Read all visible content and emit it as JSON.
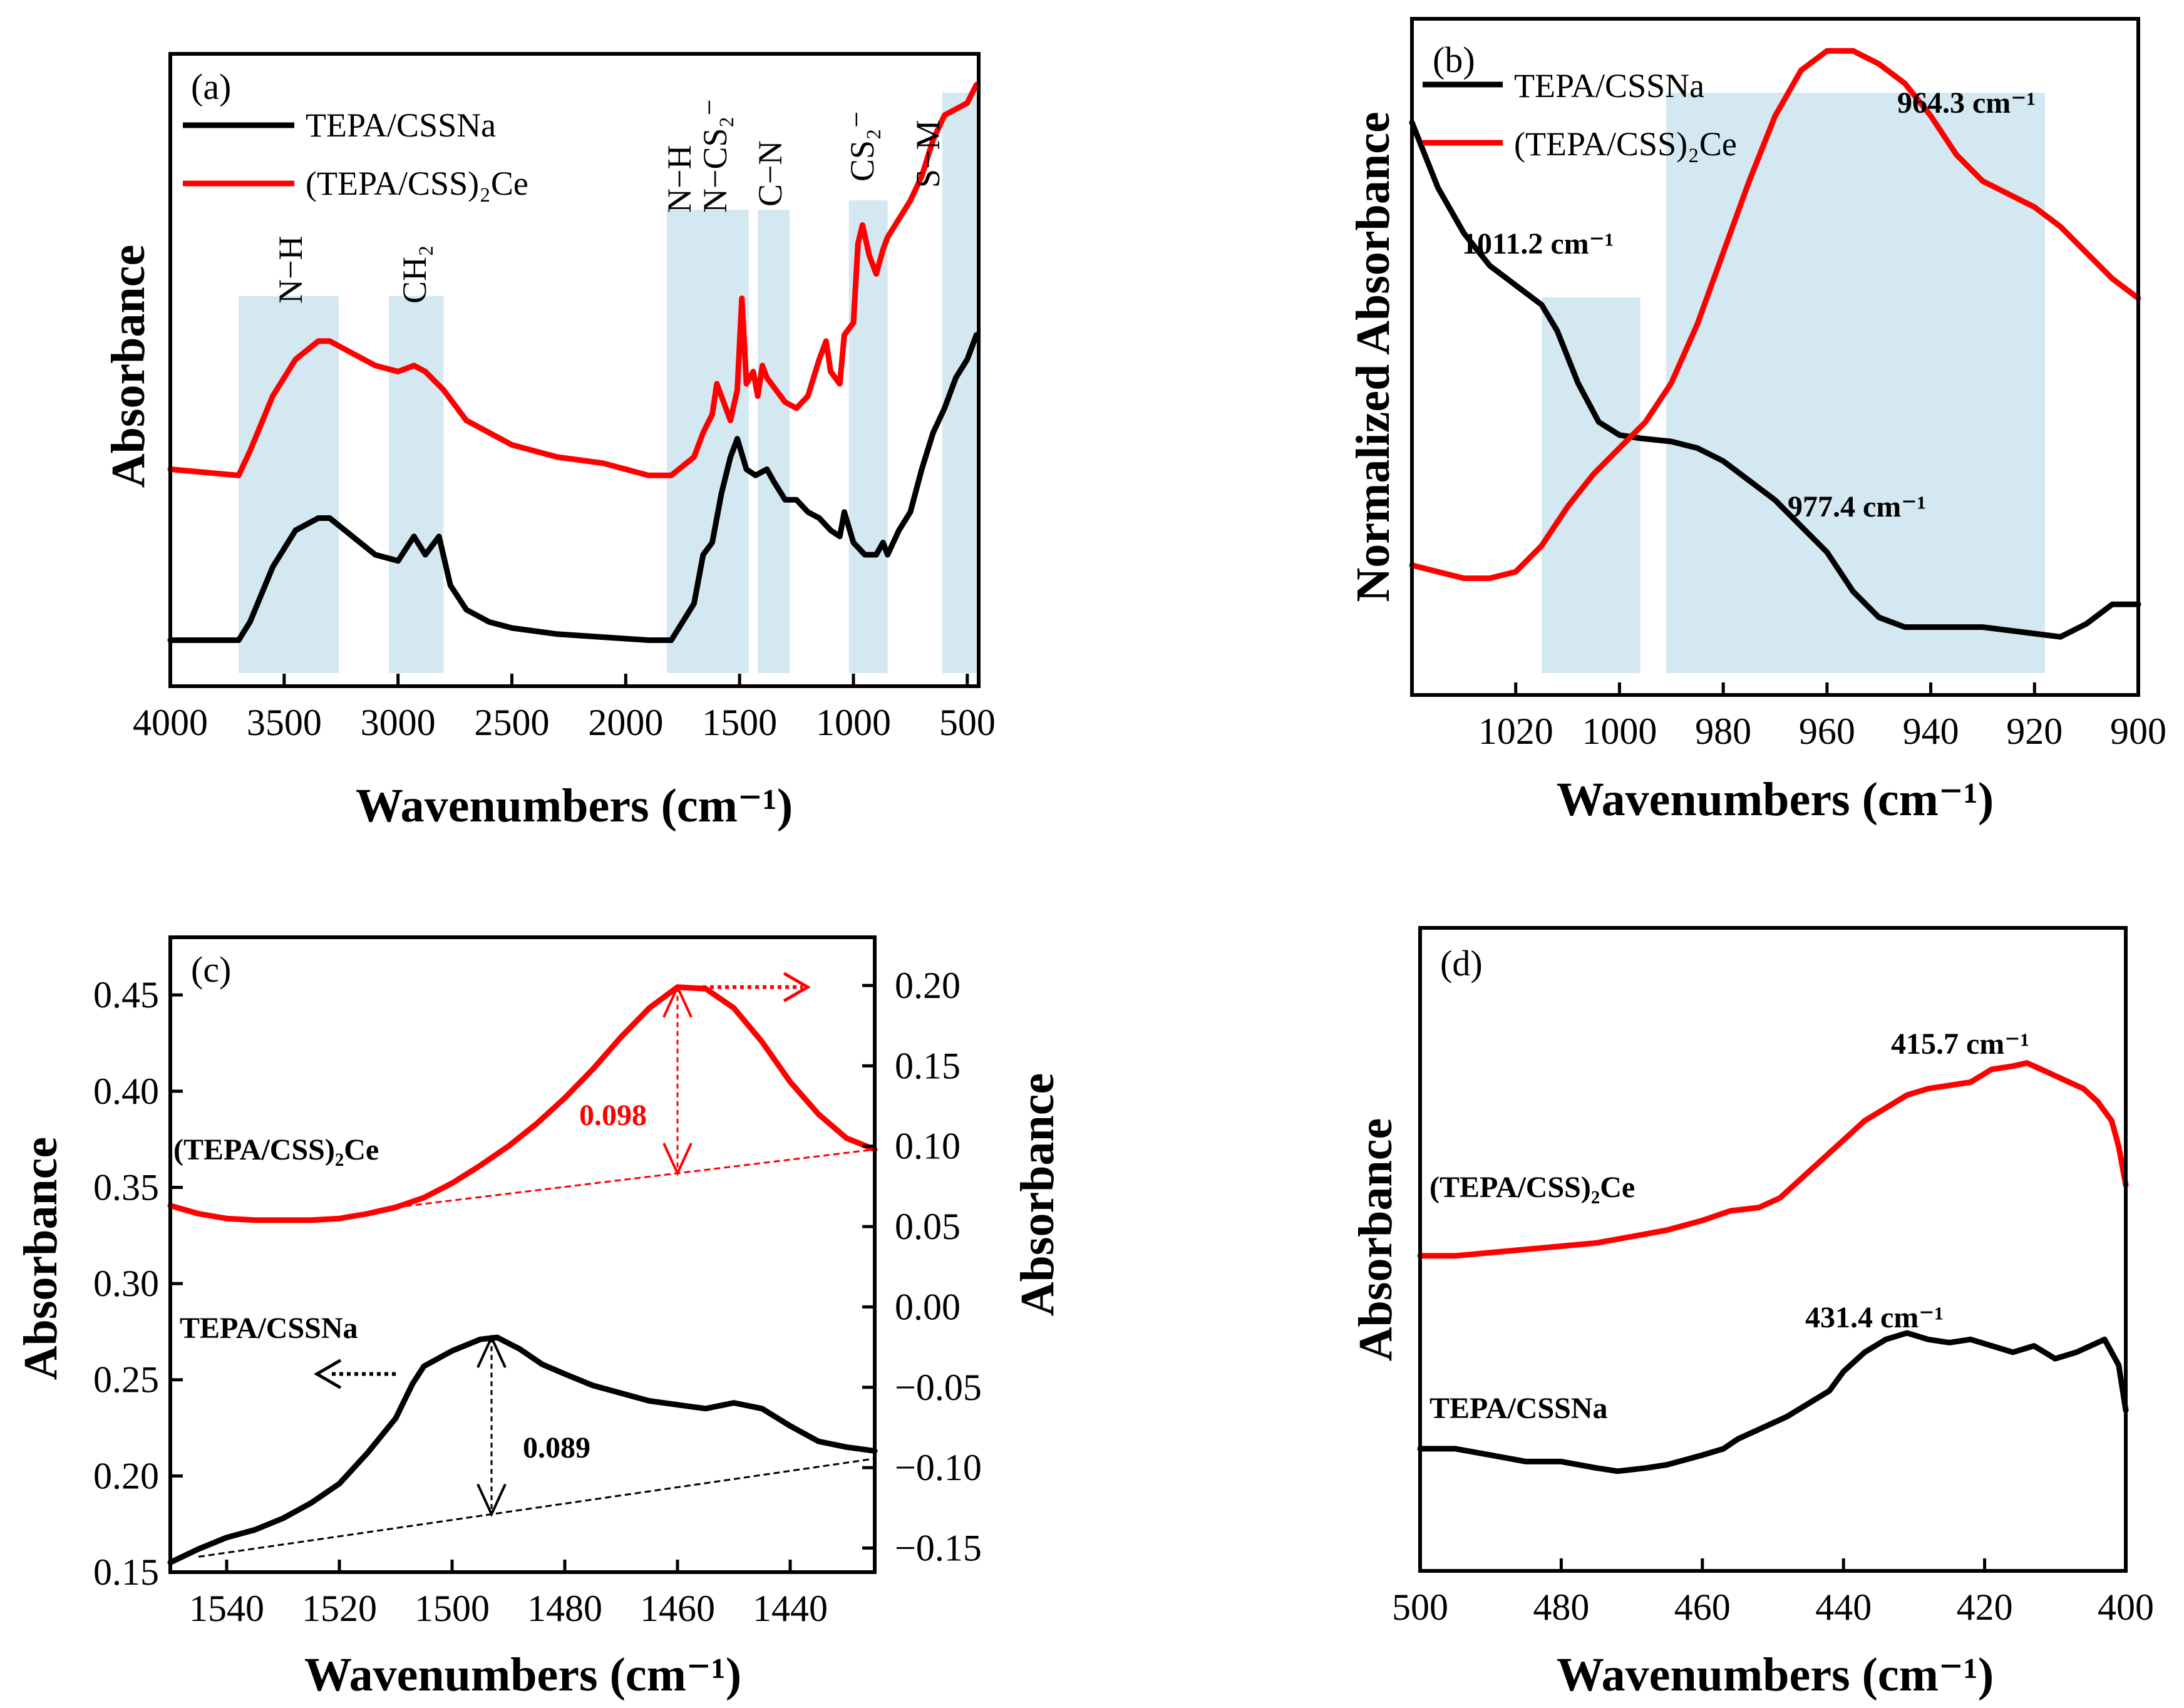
{
  "colors": {
    "series_black": "#000000",
    "series_red": "#ff0000",
    "band": "#cfe6ef"
  },
  "chart_data": [
    {
      "panel": "(a)",
      "type": "line",
      "xlabel": "Wavenumbers (cm⁻¹)",
      "ylabel": "Absorbance",
      "xlim": [
        4000,
        450
      ],
      "ylim": [
        0,
        1
      ],
      "xticks": [
        4000,
        3500,
        3000,
        2500,
        2000,
        1500,
        1000,
        500
      ],
      "legend": [
        "TEPA/CSSNa",
        "(TEPA/CSS)₂Ce"
      ],
      "bands": [
        {
          "label": "N−H",
          "x0": 3700,
          "x1": 3260
        },
        {
          "label": "CH₂",
          "x0": 3040,
          "x1": 2800
        },
        {
          "label": "N−H",
          "x0": 1820,
          "x1": 1590
        },
        {
          "label": "N−CS₂⁻",
          "x0": 1590,
          "x1": 1460
        },
        {
          "label": "C−N",
          "x0": 1420,
          "x1": 1280
        },
        {
          "label": "CS₂⁻",
          "x0": 1020,
          "x1": 850
        },
        {
          "label": "S−M",
          "x0": 610,
          "x1": 460
        }
      ],
      "series": [
        {
          "name": "TEPA/CSSNa",
          "color": "#000000",
          "x": [
            4000,
            3700,
            3650,
            3550,
            3450,
            3350,
            3300,
            3200,
            3100,
            3000,
            2930,
            2880,
            2820,
            2770,
            2700,
            2600,
            2500,
            2300,
            2100,
            1900,
            1800,
            1700,
            1660,
            1620,
            1580,
            1540,
            1510,
            1470,
            1430,
            1380,
            1350,
            1300,
            1250,
            1200,
            1150,
            1100,
            1060,
            1040,
            1000,
            950,
            900,
            870,
            850,
            800,
            750,
            700,
            650,
            600,
            550,
            500,
            460
          ],
          "y": [
            0.06,
            0.06,
            0.09,
            0.18,
            0.24,
            0.26,
            0.26,
            0.23,
            0.2,
            0.19,
            0.23,
            0.2,
            0.23,
            0.15,
            0.11,
            0.09,
            0.08,
            0.07,
            0.065,
            0.06,
            0.06,
            0.12,
            0.2,
            0.22,
            0.3,
            0.36,
            0.39,
            0.34,
            0.33,
            0.34,
            0.32,
            0.29,
            0.29,
            0.27,
            0.26,
            0.24,
            0.23,
            0.27,
            0.22,
            0.2,
            0.2,
            0.22,
            0.2,
            0.24,
            0.27,
            0.34,
            0.4,
            0.44,
            0.49,
            0.52,
            0.56
          ]
        },
        {
          "name": "(TEPA/CSS)₂Ce",
          "color": "#ff0000",
          "x": [
            4000,
            3700,
            3650,
            3550,
            3450,
            3350,
            3300,
            3200,
            3100,
            3000,
            2930,
            2880,
            2800,
            2700,
            2600,
            2500,
            2400,
            2300,
            2100,
            2000,
            1900,
            1800,
            1700,
            1660,
            1620,
            1600,
            1570,
            1540,
            1510,
            1490,
            1470,
            1440,
            1420,
            1400,
            1380,
            1340,
            1300,
            1250,
            1200,
            1150,
            1120,
            1100,
            1060,
            1040,
            1000,
            980,
            960,
            930,
            900,
            870,
            850,
            800,
            750,
            700,
            650,
            600,
            550,
            500,
            460
          ],
          "y": [
            0.34,
            0.33,
            0.37,
            0.46,
            0.52,
            0.55,
            0.55,
            0.53,
            0.51,
            0.5,
            0.51,
            0.5,
            0.47,
            0.42,
            0.4,
            0.38,
            0.37,
            0.36,
            0.35,
            0.34,
            0.33,
            0.33,
            0.36,
            0.4,
            0.43,
            0.48,
            0.45,
            0.42,
            0.47,
            0.62,
            0.48,
            0.5,
            0.46,
            0.51,
            0.49,
            0.47,
            0.45,
            0.44,
            0.46,
            0.52,
            0.55,
            0.5,
            0.48,
            0.56,
            0.58,
            0.71,
            0.74,
            0.69,
            0.66,
            0.7,
            0.72,
            0.75,
            0.78,
            0.82,
            0.88,
            0.92,
            0.93,
            0.94,
            0.97
          ]
        }
      ]
    },
    {
      "panel": "(b)",
      "type": "line",
      "xlabel": "Wavenumbers (cm⁻¹)",
      "ylabel": "Normalized Absorbance",
      "xlim": [
        1040,
        900
      ],
      "ylim": [
        0,
        1
      ],
      "xticks": [
        1020,
        1000,
        980,
        960,
        940,
        920,
        900
      ],
      "legend": [
        "TEPA/CSSNa",
        "(TEPA/CSS)₂Ce"
      ],
      "bands": [
        {
          "x0": 1015,
          "x1": 996
        },
        {
          "x0": 991,
          "x1": 918
        }
      ],
      "annotations": [
        {
          "text": "1011.2 cm⁻¹",
          "x": 1031,
          "y": 0.7
        },
        {
          "text": "964.3  cm⁻¹",
          "x": 952,
          "y": 0.93
        },
        {
          "text": "977.4 cm⁻¹",
          "x": 975,
          "y": 0.26
        }
      ],
      "series": [
        {
          "name": "TEPA/CSSNa",
          "color": "#000000",
          "x": [
            1040,
            1035,
            1030,
            1025,
            1020,
            1015,
            1012,
            1008,
            1004,
            1000,
            996,
            990,
            985,
            980,
            975,
            970,
            965,
            960,
            955,
            950,
            945,
            940,
            935,
            930,
            925,
            920,
            915,
            910,
            905,
            900
          ],
          "y": [
            0.86,
            0.76,
            0.69,
            0.64,
            0.61,
            0.58,
            0.54,
            0.46,
            0.4,
            0.38,
            0.375,
            0.37,
            0.36,
            0.34,
            0.31,
            0.28,
            0.24,
            0.2,
            0.14,
            0.1,
            0.085,
            0.085,
            0.085,
            0.085,
            0.08,
            0.075,
            0.07,
            0.09,
            0.12,
            0.12
          ]
        },
        {
          "name": "(TEPA/CSS)₂Ce",
          "color": "#ff0000",
          "x": [
            1040,
            1035,
            1030,
            1025,
            1020,
            1015,
            1010,
            1005,
            1000,
            995,
            990,
            985,
            980,
            975,
            970,
            965,
            960,
            955,
            950,
            945,
            940,
            935,
            930,
            925,
            920,
            915,
            910,
            905,
            900
          ],
          "y": [
            0.18,
            0.17,
            0.16,
            0.16,
            0.17,
            0.21,
            0.27,
            0.32,
            0.36,
            0.4,
            0.46,
            0.55,
            0.66,
            0.77,
            0.87,
            0.94,
            0.97,
            0.97,
            0.95,
            0.92,
            0.87,
            0.81,
            0.77,
            0.75,
            0.73,
            0.7,
            0.66,
            0.62,
            0.59
          ]
        }
      ]
    },
    {
      "panel": "(c)",
      "type": "line",
      "xlabel": "Wavenumbers (cm⁻¹)",
      "ylabel": "Absorbance",
      "y2label": "Absorbance",
      "xlim": [
        1550,
        1425
      ],
      "ylim": [
        0.15,
        0.48
      ],
      "y2lim": [
        -0.165,
        0.23
      ],
      "xticks": [
        1540,
        1520,
        1500,
        1480,
        1460,
        1440
      ],
      "yticks": [
        0.15,
        0.2,
        0.25,
        0.3,
        0.35,
        0.4,
        0.45
      ],
      "y2ticks": [
        -0.15,
        -0.1,
        -0.05,
        0.0,
        0.05,
        0.1,
        0.15,
        0.2
      ],
      "series_labels": [
        "(TEPA/CSS)₂Ce",
        "TEPA/CSSNa"
      ],
      "peak_heights": {
        "red": "0.098",
        "black": "0.089"
      },
      "series": [
        {
          "name": "TEPA/CSSNa",
          "axis": "left",
          "color": "#000000",
          "x": [
            1550,
            1545,
            1540,
            1535,
            1530,
            1525,
            1520,
            1515,
            1510,
            1507,
            1505,
            1500,
            1495,
            1492,
            1488,
            1484,
            1480,
            1475,
            1470,
            1465,
            1460,
            1455,
            1450,
            1445,
            1440,
            1435,
            1430,
            1425
          ],
          "y": [
            0.155,
            0.162,
            0.168,
            0.172,
            0.178,
            0.186,
            0.196,
            0.212,
            0.23,
            0.248,
            0.257,
            0.265,
            0.271,
            0.272,
            0.266,
            0.258,
            0.253,
            0.247,
            0.243,
            0.239,
            0.237,
            0.235,
            0.238,
            0.235,
            0.226,
            0.218,
            0.215,
            0.213
          ]
        },
        {
          "name": "(TEPA/CSS)₂Ce",
          "axis": "right",
          "color": "#ff0000",
          "x": [
            1550,
            1545,
            1540,
            1535,
            1530,
            1525,
            1520,
            1515,
            1510,
            1505,
            1500,
            1495,
            1490,
            1485,
            1480,
            1475,
            1470,
            1465,
            1460,
            1455,
            1450,
            1445,
            1440,
            1435,
            1430,
            1425
          ],
          "y": [
            0.063,
            0.058,
            0.055,
            0.054,
            0.054,
            0.054,
            0.055,
            0.058,
            0.062,
            0.068,
            0.077,
            0.088,
            0.1,
            0.114,
            0.13,
            0.148,
            0.168,
            0.186,
            0.199,
            0.198,
            0.186,
            0.165,
            0.14,
            0.12,
            0.105,
            0.098
          ]
        }
      ]
    },
    {
      "panel": "(d)",
      "type": "line",
      "xlabel": "Wavenumbers (cm⁻¹)",
      "ylabel": "Absorbance",
      "xlim": [
        500,
        400
      ],
      "ylim": [
        0,
        1
      ],
      "xticks": [
        500,
        480,
        460,
        440,
        420,
        400
      ],
      "series_labels": [
        "(TEPA/CSS)₂Ce",
        "TEPA/CSSNa"
      ],
      "annotations": [
        {
          "text": "415.7  cm⁻¹",
          "x": 428,
          "y": 0.93
        },
        {
          "text": "431.4 cm⁻¹",
          "x": 445,
          "y": 0.42
        }
      ],
      "series": [
        {
          "name": "TEPA/CSSNa",
          "color": "#000000",
          "x": [
            500,
            495,
            490,
            485,
            480,
            475,
            472,
            468,
            465,
            460,
            457,
            455,
            452,
            448,
            445,
            442,
            440,
            437,
            434,
            431,
            428,
            425,
            422,
            419,
            416,
            413,
            410,
            407,
            405,
            403,
            401,
            400
          ],
          "y": [
            0.19,
            0.19,
            0.18,
            0.17,
            0.17,
            0.16,
            0.155,
            0.16,
            0.165,
            0.18,
            0.19,
            0.205,
            0.22,
            0.24,
            0.26,
            0.28,
            0.31,
            0.34,
            0.36,
            0.37,
            0.36,
            0.355,
            0.36,
            0.35,
            0.34,
            0.35,
            0.33,
            0.34,
            0.35,
            0.36,
            0.32,
            0.25
          ]
        },
        {
          "name": "(TEPA/CSS)₂Ce",
          "color": "#ff0000",
          "x": [
            500,
            495,
            490,
            485,
            480,
            475,
            470,
            465,
            460,
            456,
            452,
            449,
            446,
            443,
            440,
            437,
            434,
            431,
            428,
            425,
            422,
            419,
            416,
            414,
            412,
            410,
            408,
            406,
            404,
            402,
            401,
            400
          ],
          "y": [
            0.49,
            0.49,
            0.495,
            0.5,
            0.505,
            0.51,
            0.52,
            0.53,
            0.545,
            0.56,
            0.565,
            0.58,
            0.61,
            0.64,
            0.67,
            0.7,
            0.72,
            0.74,
            0.75,
            0.755,
            0.76,
            0.78,
            0.785,
            0.79,
            0.78,
            0.77,
            0.76,
            0.75,
            0.73,
            0.7,
            0.66,
            0.6
          ]
        }
      ]
    }
  ],
  "texts": {
    "a": {
      "panel_label": "(a)",
      "legend_black": "TEPA/CSSNa",
      "legend_red": "(TEPA/CSS)₂Ce",
      "ylabel": "Absorbance",
      "xlabel": "Wavenumbers (cm⁻¹)",
      "band_labels": [
        "N−H",
        "CH₂",
        "N−H",
        "N−CS₂⁻",
        "C−N",
        "CS₂⁻",
        "S−M"
      ]
    },
    "b": {
      "panel_label": "(b)",
      "legend_black": "TEPA/CSSNa",
      "legend_red": "(TEPA/CSS)₂Ce",
      "ylabel": "Normalized Absorbance",
      "xlabel": "Wavenumbers (cm⁻¹)",
      "anno_1011": "1011.2 cm⁻¹",
      "anno_964": "964.3  cm⁻¹",
      "anno_977": "977.4 cm⁻¹"
    },
    "c": {
      "panel_label": "(c)",
      "ylabel": "Absorbance",
      "y2label": "Absorbance",
      "xlabel": "Wavenumbers (cm⁻¹)",
      "label_red": "(TEPA/CSS)₂Ce",
      "label_black": "TEPA/CSSNa",
      "height_red": "0.098",
      "height_black": "0.089"
    },
    "d": {
      "panel_label": "(d)",
      "ylabel": "Absorbance",
      "xlabel": "Wavenumbers (cm⁻¹)",
      "label_red": "(TEPA/CSS)₂Ce",
      "label_black": "TEPA/CSSNa",
      "anno_415": "415.7  cm⁻¹",
      "anno_431": "431.4 cm⁻¹"
    }
  }
}
